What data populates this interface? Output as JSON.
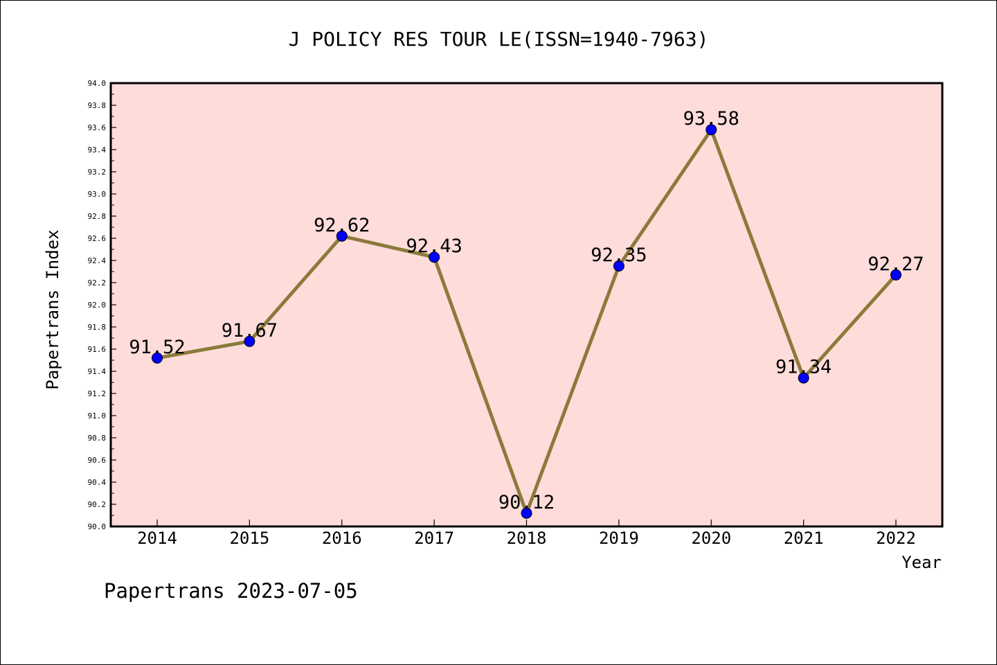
{
  "chart_data": {
    "type": "line",
    "title": "J POLICY RES TOUR LE(ISSN=1940-7963)",
    "xlabel": "Year",
    "ylabel": "Papertrans Index",
    "footer": "Papertrans 2023-07-05",
    "categories": [
      "2014",
      "2015",
      "2016",
      "2017",
      "2018",
      "2019",
      "2020",
      "2021",
      "2022"
    ],
    "values": [
      91.52,
      91.67,
      92.62,
      92.43,
      90.12,
      92.35,
      93.58,
      91.34,
      92.27
    ],
    "value_labels": [
      "91.52",
      "91.67",
      "92.62",
      "92.43",
      "90.12",
      "92.35",
      "93.58",
      "91.34",
      "92.27"
    ],
    "ylim": [
      90.0,
      94.0
    ],
    "yticks": [
      "90.0",
      "90.2",
      "90.4",
      "90.6",
      "90.8",
      "91.0",
      "91.2",
      "91.4",
      "91.6",
      "91.8",
      "92.0",
      "92.2",
      "92.4",
      "92.6",
      "92.8",
      "93.0",
      "93.2",
      "93.4",
      "93.6",
      "93.8",
      "94.0"
    ],
    "grid": false,
    "colors": {
      "plot_background": "#fddcda",
      "line": "#8b7a3a",
      "marker": "#0000ff"
    }
  }
}
